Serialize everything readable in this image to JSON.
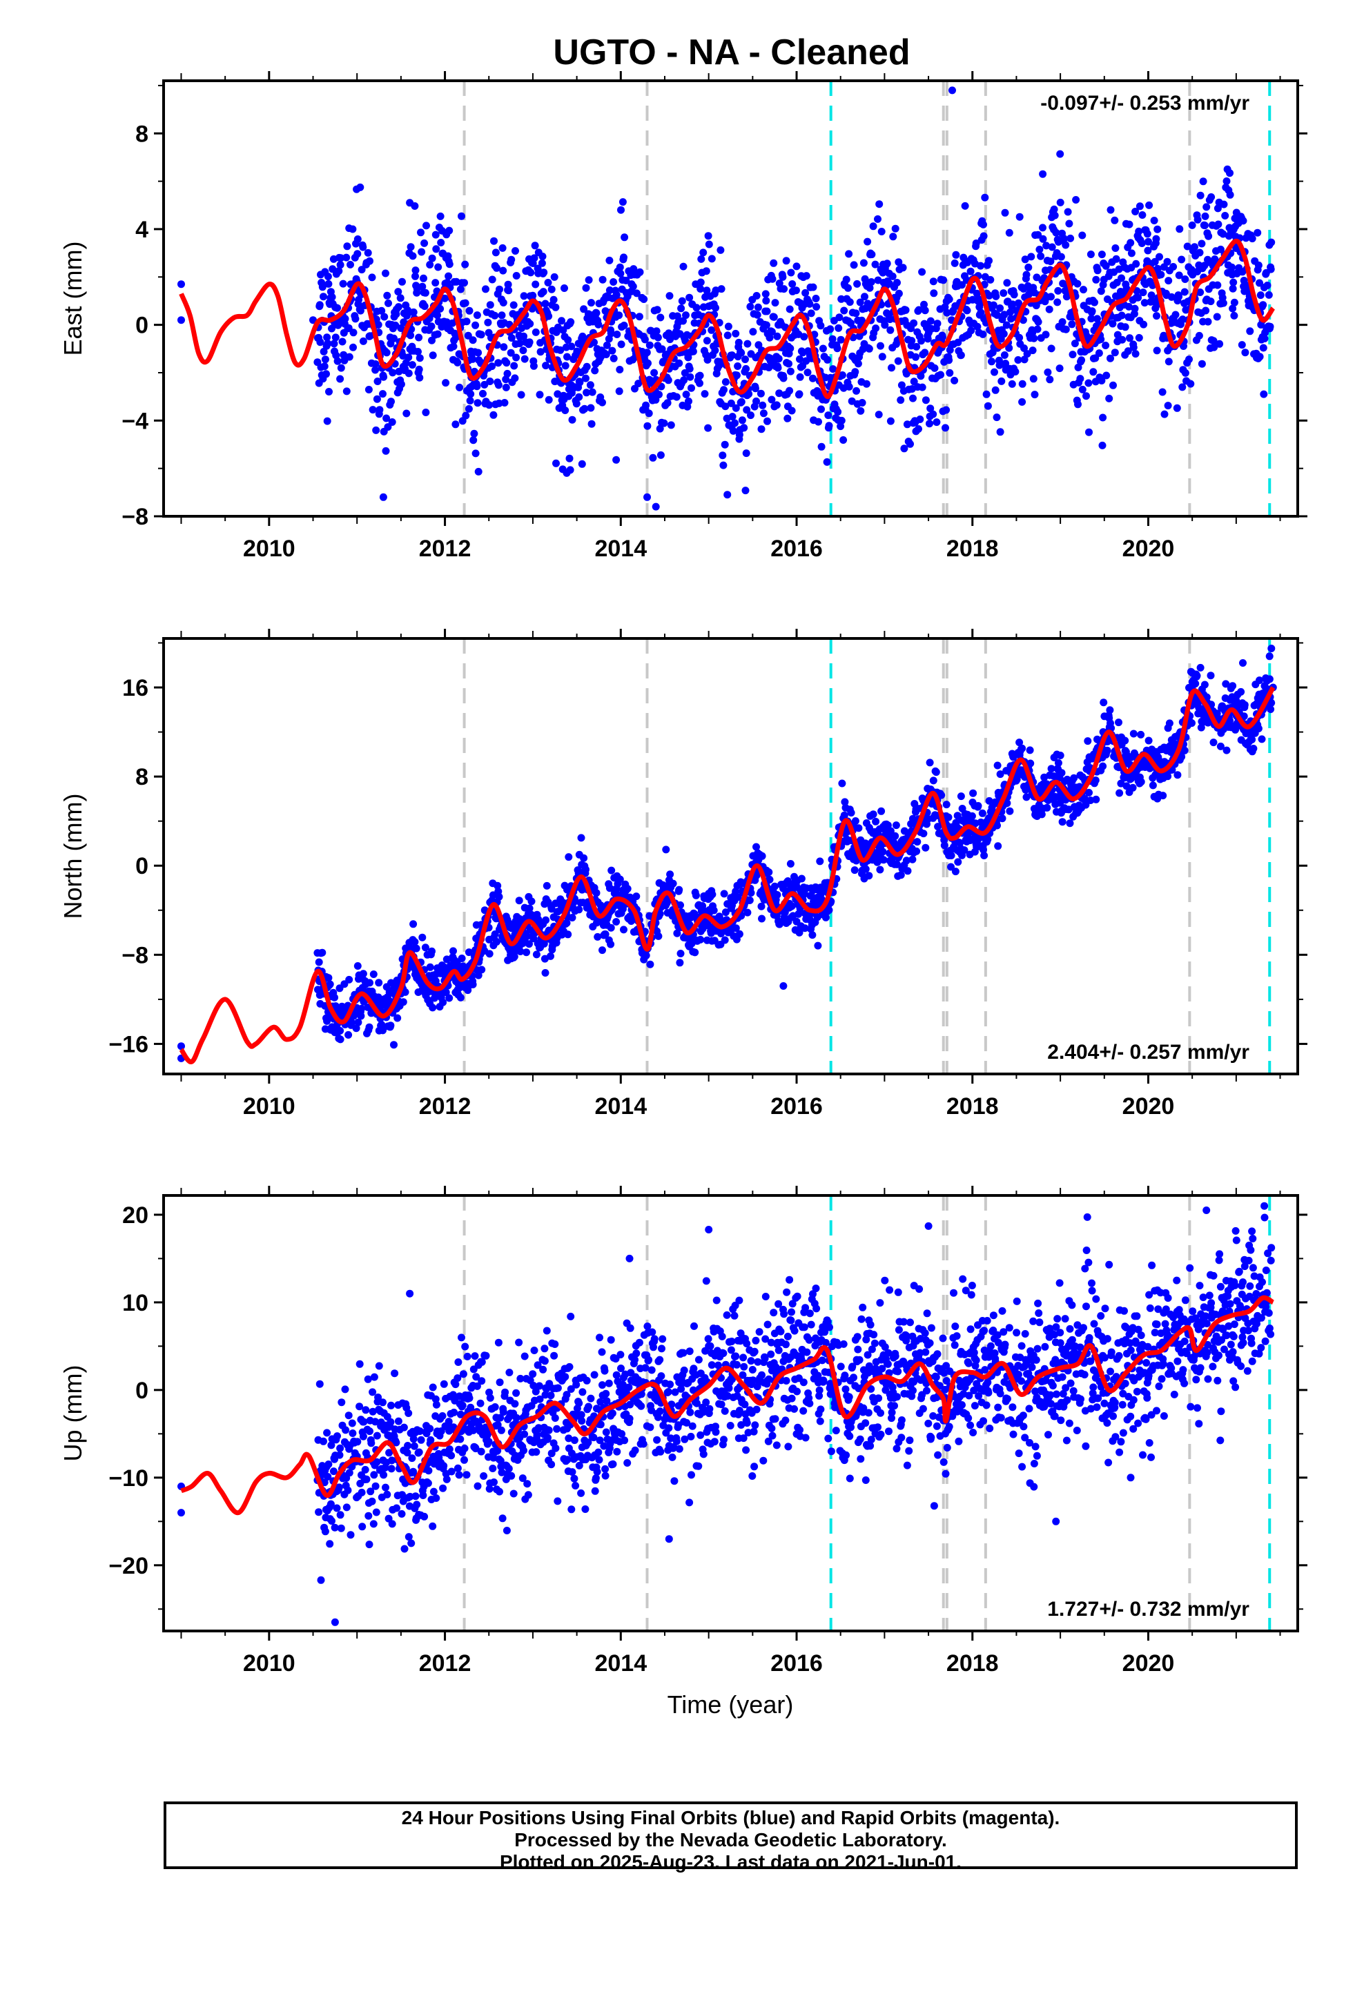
{
  "title": "UGTO  - NA - Cleaned",
  "x_axis_label": "Time (year)",
  "footer": {
    "line1": "24 Hour Positions Using Final Orbits (blue) and Rapid Orbits (magenta).",
    "line2": "Processed by the Nevada Geodetic Laboratory.",
    "line3": "Plotted on 2025-Aug-23. Last data on 2021-Jun-01."
  },
  "colors": {
    "data_points": "#0000ff",
    "model_curve": "#ff0000",
    "equipment_change": "#c8c8c8",
    "event_line": "#00e5e5"
  },
  "chart_data": [
    {
      "type": "scatter",
      "name": "east",
      "ylabel": "East (mm)",
      "xlim": [
        2008.8,
        2021.7
      ],
      "ylim": [
        -8,
        10.2
      ],
      "yticks": [
        -8,
        -4,
        0,
        4,
        8
      ],
      "ytick_labels": [
        "−8",
        "−4",
        "0",
        "4",
        "8"
      ],
      "xticks": [
        2010,
        2012,
        2014,
        2016,
        2018,
        2020
      ],
      "rate": "-0.097+/- 0.253 mm/yr",
      "rate_position": "top-right",
      "gray_lines": [
        2012.22,
        2014.3,
        2017.67,
        2017.71,
        2018.15,
        2020.47
      ],
      "cyan_lines": [
        2016.39,
        2021.38
      ],
      "model_curve": [
        [
          2009.0,
          1.3
        ],
        [
          2009.1,
          0.4
        ],
        [
          2009.2,
          -1.2
        ],
        [
          2009.3,
          -1.5
        ],
        [
          2009.45,
          -0.3
        ],
        [
          2009.6,
          0.3
        ],
        [
          2009.75,
          0.4
        ],
        [
          2009.85,
          1.0
        ],
        [
          2010.0,
          1.7
        ],
        [
          2010.1,
          1.2
        ],
        [
          2010.2,
          -0.4
        ],
        [
          2010.3,
          -1.6
        ],
        [
          2010.4,
          -1.4
        ],
        [
          2010.55,
          0.1
        ],
        [
          2010.7,
          0.2
        ],
        [
          2010.85,
          0.6
        ],
        [
          2011.0,
          1.7
        ],
        [
          2011.1,
          1.2
        ],
        [
          2011.2,
          -0.3
        ],
        [
          2011.3,
          -1.7
        ],
        [
          2011.45,
          -1.2
        ],
        [
          2011.6,
          0.1
        ],
        [
          2011.75,
          0.3
        ],
        [
          2011.9,
          0.9
        ],
        [
          2012.0,
          1.5
        ],
        [
          2012.1,
          0.8
        ],
        [
          2012.2,
          -0.8
        ],
        [
          2012.3,
          -2.2
        ],
        [
          2012.45,
          -1.7
        ],
        [
          2012.6,
          -0.4
        ],
        [
          2012.75,
          -0.2
        ],
        [
          2012.9,
          0.5
        ],
        [
          2013.0,
          1.0
        ],
        [
          2013.1,
          0.5
        ],
        [
          2013.2,
          -1.0
        ],
        [
          2013.35,
          -2.3
        ],
        [
          2013.5,
          -1.7
        ],
        [
          2013.65,
          -0.6
        ],
        [
          2013.8,
          -0.3
        ],
        [
          2013.9,
          0.6
        ],
        [
          2014.0,
          1.0
        ],
        [
          2014.1,
          0.3
        ],
        [
          2014.2,
          -1.3
        ],
        [
          2014.3,
          -2.7
        ],
        [
          2014.45,
          -2.3
        ],
        [
          2014.6,
          -1.2
        ],
        [
          2014.75,
          -0.9
        ],
        [
          2014.9,
          -0.2
        ],
        [
          2015.0,
          0.4
        ],
        [
          2015.1,
          -0.2
        ],
        [
          2015.2,
          -1.6
        ],
        [
          2015.35,
          -2.8
        ],
        [
          2015.5,
          -2.2
        ],
        [
          2015.65,
          -1.1
        ],
        [
          2015.8,
          -0.9
        ],
        [
          2015.95,
          0.0
        ],
        [
          2016.05,
          0.4
        ],
        [
          2016.15,
          -0.4
        ],
        [
          2016.25,
          -2.0
        ],
        [
          2016.35,
          -3.0
        ],
        [
          2016.45,
          -2.2
        ],
        [
          2016.6,
          -0.4
        ],
        [
          2016.75,
          -0.2
        ],
        [
          2016.9,
          0.8
        ],
        [
          2017.0,
          1.5
        ],
        [
          2017.1,
          0.8
        ],
        [
          2017.2,
          -0.7
        ],
        [
          2017.3,
          -1.9
        ],
        [
          2017.45,
          -1.7
        ],
        [
          2017.6,
          -0.8
        ],
        [
          2017.7,
          -0.8
        ],
        [
          2017.85,
          0.5
        ],
        [
          2018.0,
          1.9
        ],
        [
          2018.1,
          1.5
        ],
        [
          2018.2,
          0.1
        ],
        [
          2018.3,
          -0.9
        ],
        [
          2018.45,
          -0.4
        ],
        [
          2018.6,
          0.9
        ],
        [
          2018.75,
          1.1
        ],
        [
          2018.85,
          1.8
        ],
        [
          2019.0,
          2.5
        ],
        [
          2019.1,
          1.7
        ],
        [
          2019.2,
          0.1
        ],
        [
          2019.3,
          -0.9
        ],
        [
          2019.45,
          -0.2
        ],
        [
          2019.6,
          0.8
        ],
        [
          2019.75,
          1.1
        ],
        [
          2019.85,
          1.7
        ],
        [
          2020.0,
          2.4
        ],
        [
          2020.1,
          1.7
        ],
        [
          2020.2,
          0.1
        ],
        [
          2020.3,
          -0.9
        ],
        [
          2020.45,
          0.0
        ],
        [
          2020.55,
          1.6
        ],
        [
          2020.7,
          2.0
        ],
        [
          2020.85,
          2.8
        ],
        [
          2021.0,
          3.5
        ],
        [
          2021.1,
          2.8
        ],
        [
          2021.2,
          1.2
        ],
        [
          2021.3,
          0.2
        ],
        [
          2021.42,
          0.7
        ]
      ],
      "anchor_points": [
        [
          2009.0,
          1.7
        ],
        [
          2009.0,
          0.2
        ],
        [
          2010.5,
          0.2
        ],
        [
          2011.0,
          1.7
        ],
        [
          2011.3,
          -1.7
        ],
        [
          2012.0,
          1.5
        ],
        [
          2012.3,
          -2.2
        ],
        [
          2013.0,
          1.0
        ],
        [
          2013.35,
          -2.3
        ],
        [
          2014.0,
          1.0
        ],
        [
          2014.3,
          -2.7
        ],
        [
          2015.0,
          0.4
        ],
        [
          2015.35,
          -2.8
        ],
        [
          2016.05,
          0.4
        ],
        [
          2016.35,
          -3.0
        ],
        [
          2017.0,
          1.5
        ],
        [
          2017.3,
          -1.9
        ],
        [
          2018.0,
          1.9
        ],
        [
          2018.3,
          -0.9
        ],
        [
          2019.0,
          2.5
        ],
        [
          2019.3,
          -0.9
        ],
        [
          2020.0,
          2.4
        ],
        [
          2020.3,
          -0.9
        ],
        [
          2021.0,
          3.5
        ],
        [
          2021.3,
          0.2
        ]
      ],
      "scatter_sd": 1.6,
      "outliers": [
        [
          2017.77,
          9.8
        ],
        [
          2011.3,
          -7.2
        ],
        [
          2014.4,
          -7.6
        ],
        [
          2014.3,
          -7.2
        ],
        [
          2020.9,
          6.5
        ],
        [
          2018.8,
          6.3
        ],
        [
          2011.6,
          5.1
        ]
      ]
    },
    {
      "type": "scatter",
      "name": "north",
      "ylabel": "North (mm)",
      "xlim": [
        2008.8,
        2021.7
      ],
      "ylim": [
        -18.7,
        20.4
      ],
      "yticks": [
        -16,
        -8,
        0,
        8,
        16
      ],
      "ytick_labels": [
        "−16",
        "−8",
        "0",
        "8",
        "16"
      ],
      "xticks": [
        2010,
        2012,
        2014,
        2016,
        2018,
        2020
      ],
      "rate": "2.404+/- 0.257 mm/yr",
      "rate_position": "bottom-right",
      "gray_lines": [
        2012.22,
        2014.3,
        2017.67,
        2017.71,
        2018.15,
        2020.47
      ],
      "cyan_lines": [
        2016.39,
        2021.38
      ],
      "model_curve": [
        [
          2009.0,
          -16.5
        ],
        [
          2009.12,
          -17.6
        ],
        [
          2009.25,
          -15.5
        ],
        [
          2009.5,
          -12.0
        ],
        [
          2009.75,
          -15.8
        ],
        [
          2009.85,
          -16.0
        ],
        [
          2010.05,
          -14.5
        ],
        [
          2010.2,
          -15.6
        ],
        [
          2010.35,
          -14.5
        ],
        [
          2010.55,
          -9.5
        ],
        [
          2010.7,
          -12.8
        ],
        [
          2010.85,
          -14.0
        ],
        [
          2011.05,
          -11.5
        ],
        [
          2011.3,
          -13.5
        ],
        [
          2011.5,
          -11.0
        ],
        [
          2011.6,
          -7.8
        ],
        [
          2011.8,
          -10.5
        ],
        [
          2011.95,
          -11.0
        ],
        [
          2012.1,
          -9.5
        ],
        [
          2012.2,
          -10.2
        ],
        [
          2012.35,
          -8.5
        ],
        [
          2012.55,
          -3.5
        ],
        [
          2012.75,
          -7.0
        ],
        [
          2012.95,
          -5.0
        ],
        [
          2013.15,
          -6.5
        ],
        [
          2013.35,
          -4.5
        ],
        [
          2013.55,
          -1.0
        ],
        [
          2013.75,
          -4.5
        ],
        [
          2013.95,
          -3.0
        ],
        [
          2014.15,
          -4.0
        ],
        [
          2014.3,
          -7.5
        ],
        [
          2014.4,
          -4.0
        ],
        [
          2014.55,
          -2.5
        ],
        [
          2014.75,
          -6.0
        ],
        [
          2014.95,
          -4.5
        ],
        [
          2015.15,
          -5.5
        ],
        [
          2015.35,
          -4.0
        ],
        [
          2015.55,
          0.0
        ],
        [
          2015.75,
          -4.0
        ],
        [
          2015.95,
          -2.5
        ],
        [
          2016.15,
          -4.0
        ],
        [
          2016.35,
          -3.0
        ],
        [
          2016.55,
          4.0
        ],
        [
          2016.75,
          0.5
        ],
        [
          2016.95,
          2.5
        ],
        [
          2017.15,
          1.0
        ],
        [
          2017.35,
          3.0
        ],
        [
          2017.55,
          6.5
        ],
        [
          2017.7,
          3.0
        ],
        [
          2017.8,
          2.5
        ],
        [
          2017.95,
          3.5
        ],
        [
          2018.15,
          3.0
        ],
        [
          2018.35,
          6.0
        ],
        [
          2018.55,
          9.5
        ],
        [
          2018.75,
          6.0
        ],
        [
          2018.95,
          7.5
        ],
        [
          2019.15,
          6.0
        ],
        [
          2019.35,
          8.0
        ],
        [
          2019.55,
          12.0
        ],
        [
          2019.75,
          8.5
        ],
        [
          2019.95,
          10.0
        ],
        [
          2020.15,
          8.5
        ],
        [
          2020.35,
          10.5
        ],
        [
          2020.5,
          15.5
        ],
        [
          2020.65,
          14.5
        ],
        [
          2020.8,
          12.5
        ],
        [
          2020.95,
          14.0
        ],
        [
          2021.15,
          12.5
        ],
        [
          2021.42,
          16.0
        ]
      ],
      "anchor_points": [
        [
          2009.0,
          -17.3
        ],
        [
          2009.0,
          -16.2
        ],
        [
          2010.6,
          -9.5
        ],
        [
          2011.6,
          -7.8
        ],
        [
          2012.55,
          -3.5
        ],
        [
          2013.55,
          -1.0
        ],
        [
          2014.55,
          -2.5
        ],
        [
          2015.55,
          0.0
        ],
        [
          2016.55,
          4.0
        ],
        [
          2017.55,
          6.5
        ],
        [
          2018.55,
          9.5
        ],
        [
          2019.55,
          12.0
        ],
        [
          2020.5,
          15.5
        ],
        [
          2021.42,
          16.0
        ]
      ],
      "scatter_sd": 1.2,
      "outliers": [
        [
          2021.4,
          19.5
        ],
        [
          2021.38,
          18.8
        ],
        [
          2020.5,
          16.5
        ],
        [
          2015.85,
          -10.8
        ],
        [
          2013.55,
          2.5
        ],
        [
          2011.8,
          -8.0
        ]
      ]
    },
    {
      "type": "scatter",
      "name": "up",
      "ylabel": "Up (mm)",
      "xlim": [
        2008.8,
        2021.7
      ],
      "ylim": [
        -27.5,
        22.2
      ],
      "yticks": [
        -20,
        -10,
        0,
        10,
        20
      ],
      "ytick_labels": [
        "−20",
        "−10",
        "0",
        "10",
        "20"
      ],
      "xticks": [
        2010,
        2012,
        2014,
        2016,
        2018,
        2020
      ],
      "xlabel_visible": true,
      "rate": "1.727+/- 0.732 mm/yr",
      "rate_position": "bottom-right",
      "gray_lines": [
        2012.22,
        2014.3,
        2017.67,
        2017.71,
        2018.15,
        2020.47
      ],
      "cyan_lines": [
        2016.39,
        2021.38
      ],
      "model_curve": [
        [
          2009.0,
          -11.5
        ],
        [
          2009.12,
          -11.0
        ],
        [
          2009.3,
          -9.5
        ],
        [
          2009.45,
          -11.5
        ],
        [
          2009.65,
          -14.0
        ],
        [
          2009.85,
          -10.5
        ],
        [
          2010.0,
          -9.5
        ],
        [
          2010.2,
          -10.0
        ],
        [
          2010.35,
          -8.5
        ],
        [
          2010.45,
          -7.5
        ],
        [
          2010.65,
          -12.0
        ],
        [
          2010.8,
          -9.5
        ],
        [
          2010.95,
          -8.0
        ],
        [
          2011.15,
          -8.0
        ],
        [
          2011.35,
          -6.0
        ],
        [
          2011.5,
          -8.5
        ],
        [
          2011.65,
          -10.5
        ],
        [
          2011.85,
          -6.5
        ],
        [
          2012.05,
          -6.0
        ],
        [
          2012.25,
          -3.0
        ],
        [
          2012.45,
          -3.0
        ],
        [
          2012.65,
          -6.5
        ],
        [
          2012.85,
          -4.0
        ],
        [
          2013.05,
          -3.0
        ],
        [
          2013.25,
          -1.5
        ],
        [
          2013.45,
          -3.5
        ],
        [
          2013.6,
          -5.0
        ],
        [
          2013.8,
          -2.5
        ],
        [
          2014.0,
          -1.5
        ],
        [
          2014.2,
          0.0
        ],
        [
          2014.4,
          0.5
        ],
        [
          2014.6,
          -3.0
        ],
        [
          2014.8,
          -1.0
        ],
        [
          2015.0,
          0.5
        ],
        [
          2015.2,
          2.5
        ],
        [
          2015.4,
          0.5
        ],
        [
          2015.6,
          -1.5
        ],
        [
          2015.8,
          1.5
        ],
        [
          2016.0,
          2.5
        ],
        [
          2016.2,
          3.5
        ],
        [
          2016.35,
          4.5
        ],
        [
          2016.55,
          -3.0
        ],
        [
          2016.8,
          0.5
        ],
        [
          2017.0,
          1.5
        ],
        [
          2017.2,
          1.0
        ],
        [
          2017.4,
          3.0
        ],
        [
          2017.55,
          0.5
        ],
        [
          2017.67,
          -1.0
        ],
        [
          2017.7,
          -3.5
        ],
        [
          2017.8,
          1.5
        ],
        [
          2018.0,
          2.0
        ],
        [
          2018.15,
          1.5
        ],
        [
          2018.35,
          3.0
        ],
        [
          2018.55,
          -0.5
        ],
        [
          2018.75,
          1.5
        ],
        [
          2019.0,
          2.5
        ],
        [
          2019.2,
          3.0
        ],
        [
          2019.35,
          5.0
        ],
        [
          2019.55,
          0.0
        ],
        [
          2019.75,
          2.0
        ],
        [
          2019.95,
          4.0
        ],
        [
          2020.15,
          4.5
        ],
        [
          2020.35,
          6.5
        ],
        [
          2020.47,
          7.0
        ],
        [
          2020.55,
          4.5
        ],
        [
          2020.75,
          7.5
        ],
        [
          2020.95,
          8.5
        ],
        [
          2021.15,
          9.0
        ],
        [
          2021.3,
          10.5
        ],
        [
          2021.42,
          10.0
        ]
      ],
      "anchor_points": [
        [
          2009.0,
          -11.0
        ],
        [
          2009.0,
          -14.0
        ],
        [
          2010.7,
          -12.0
        ],
        [
          2012.25,
          -3.0
        ],
        [
          2014.4,
          0.5
        ],
        [
          2016.35,
          4.5
        ],
        [
          2017.7,
          -3.5
        ],
        [
          2019.35,
          5.0
        ],
        [
          2021.3,
          10.5
        ]
      ],
      "scatter_sd": 4.0,
      "outliers": [
        [
          2010.75,
          -26.5
        ],
        [
          2021.32,
          21.0
        ],
        [
          2014.1,
          15.0
        ],
        [
          2015.0,
          18.3
        ],
        [
          2017.5,
          18.7
        ],
        [
          2014.55,
          -17.0
        ],
        [
          2011.6,
          11.0
        ],
        [
          2018.95,
          -15.0
        ],
        [
          2019.8,
          -10.0
        ]
      ]
    }
  ]
}
